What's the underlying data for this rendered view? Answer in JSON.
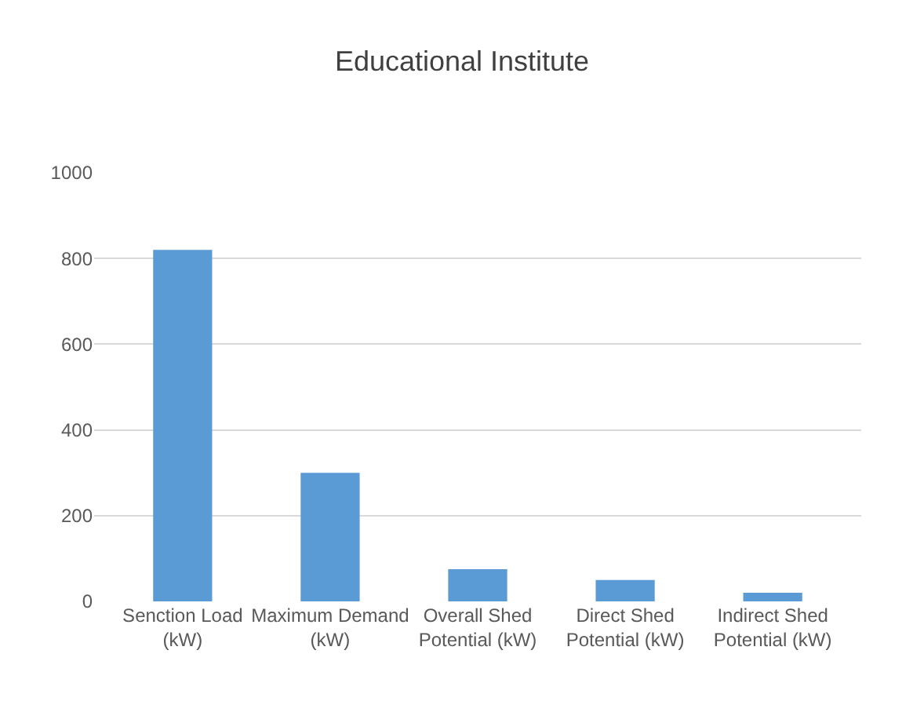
{
  "chart_data": {
    "type": "bar",
    "title": "Educational Institute",
    "categories": [
      "Senction Load (kW)",
      "Maximum Demand (kW)",
      "Overall Shed Potential (kW)",
      "Direct Shed Potential (kW)",
      "Indirect Shed Potential (kW)"
    ],
    "values": [
      820,
      300,
      75,
      50,
      20
    ],
    "color": "#5b9bd5",
    "ylim": [
      0,
      1000
    ],
    "yticks": [
      0,
      200,
      400,
      600,
      800,
      1000
    ],
    "grid": "y"
  }
}
